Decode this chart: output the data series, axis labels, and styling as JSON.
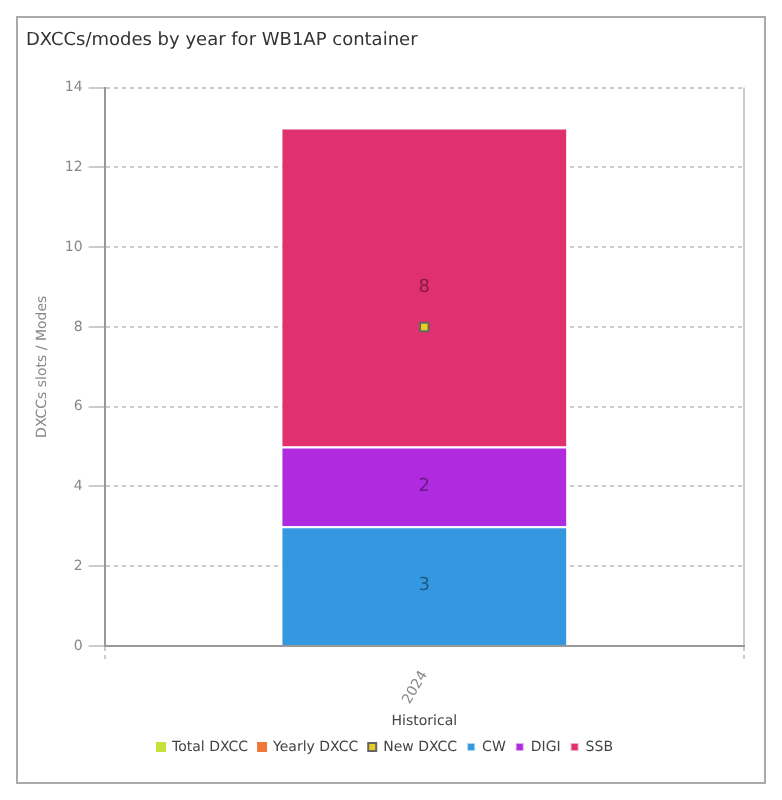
{
  "chart_data": {
    "type": "bar",
    "title": "DXCCs/modes by year for WB1AP container",
    "xlabel": "Historical",
    "ylabel": "DXCCs slots / Modes",
    "categories": [
      "2024"
    ],
    "stacked": true,
    "ylim": [
      0,
      14
    ],
    "yticks": [
      0,
      2,
      4,
      6,
      8,
      10,
      12,
      14
    ],
    "grid": true,
    "legend": "bottom",
    "series": [
      {
        "name": "Total DXCC",
        "type": "line",
        "color": "#c8e03c",
        "values": [
          null
        ]
      },
      {
        "name": "Yearly DXCC",
        "type": "line",
        "color": "#f07838",
        "values": [
          null
        ]
      },
      {
        "name": "New DXCC",
        "type": "scatter",
        "color": "#e8d020",
        "values": [
          8
        ],
        "marker": "square"
      },
      {
        "name": "CW",
        "color": "#3498e0",
        "values": [
          3
        ],
        "value_labels": [
          "3"
        ]
      },
      {
        "name": "DIGI",
        "color": "#b02ae0",
        "values": [
          2
        ],
        "value_labels": [
          "2"
        ]
      },
      {
        "name": "SSB",
        "color": "#e0306e",
        "values": [
          8
        ],
        "value_labels": [
          "8"
        ]
      }
    ]
  }
}
